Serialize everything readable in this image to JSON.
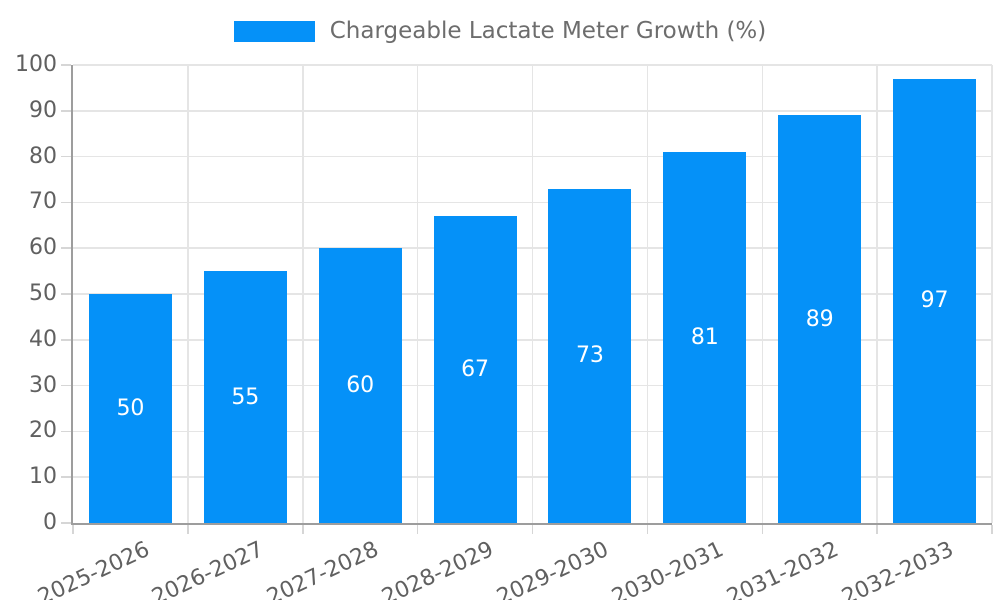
{
  "page": {
    "background": "#ffffff"
  },
  "legend": {
    "position": "top-center",
    "items": [
      {
        "label": "Chargeable Lactate Meter Growth (%)",
        "color": "#0591f8"
      }
    ]
  },
  "chart_data": {
    "type": "bar",
    "title": "Chargeable Lactate Meter Growth (%)",
    "categories": [
      "2025-2026",
      "2026-2027",
      "2027-2028",
      "2028-2029",
      "2029-2030",
      "2030-2031",
      "2031-2032",
      "2032-2033"
    ],
    "values": [
      50,
      55,
      60,
      67,
      73,
      81,
      89,
      97
    ],
    "series": [
      {
        "name": "Chargeable Lactate Meter Growth (%)",
        "values": [
          50,
          55,
          60,
          67,
          73,
          81,
          89,
          97
        ]
      }
    ],
    "xlabel": "",
    "ylabel": "",
    "ylim": [
      0,
      100
    ],
    "ytick_step": 10,
    "ytick_labels": [
      "0",
      "10",
      "20",
      "30",
      "40",
      "50",
      "60",
      "70",
      "80",
      "90",
      "100"
    ],
    "grid": true,
    "bar_labels_visible": true,
    "bar_label_position": "center",
    "x_label_rotation_deg": -25,
    "legend_position": "top-center",
    "colors": {
      "bar": "#0591f8",
      "grid": "#e5e5e5",
      "axis": "#9d9d9d",
      "tick": "#d6d6d6",
      "text": "#606060",
      "legend_text": "#6d6d6d",
      "bar_label": "#ffffff",
      "background": "#ffffff"
    }
  }
}
